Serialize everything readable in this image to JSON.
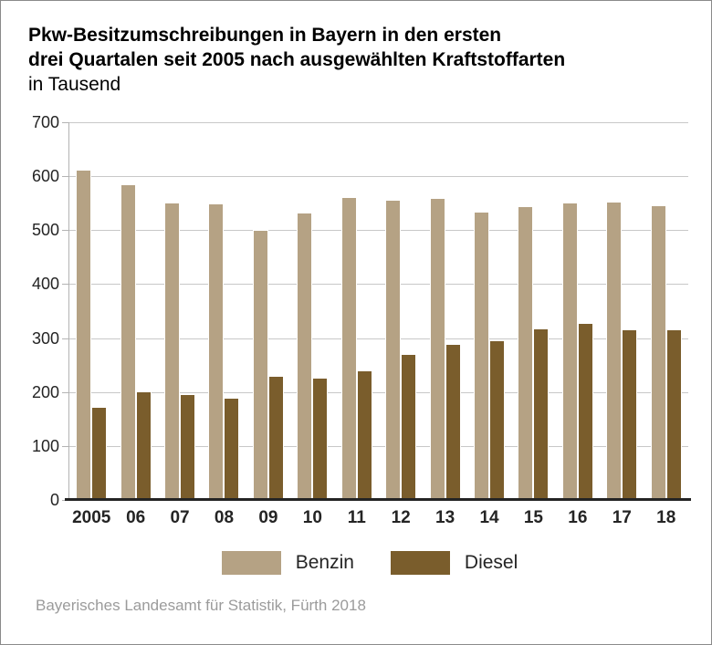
{
  "title": {
    "line1": "Pkw-Besitzumschreibungen in Bayern in den ersten",
    "line2": "drei Quartalen seit 2005 nach ausgewählten Kraftstoffarten",
    "subtitle": "in Tausend"
  },
  "chart_data": {
    "type": "bar",
    "title": "Pkw-Besitzumschreibungen in Bayern in den ersten drei Quartalen seit 2005 nach ausgewählten Kraftstoffarten",
    "subtitle": "in Tausend",
    "categories": [
      "2005",
      "06",
      "07",
      "08",
      "09",
      "10",
      "11",
      "12",
      "13",
      "14",
      "15",
      "16",
      "17",
      "18"
    ],
    "series": [
      {
        "name": "Benzin",
        "color": "#b5a284",
        "values": [
          613,
          585,
          551,
          549,
          500,
          533,
          562,
          557,
          559,
          535,
          545,
          552,
          553,
          546
        ]
      },
      {
        "name": "Diesel",
        "color": "#7a5d2c",
        "values": [
          172,
          202,
          197,
          190,
          230,
          227,
          241,
          271,
          289,
          296,
          318,
          328,
          316,
          317
        ]
      }
    ],
    "xlabel": "",
    "ylabel": "",
    "ylim": [
      0,
      700
    ],
    "yticks": [
      0,
      100,
      200,
      300,
      400,
      500,
      600,
      700
    ],
    "grid": true,
    "legend_position": "bottom"
  },
  "legend": {
    "items": [
      {
        "label": "Benzin",
        "color": "#b5a284"
      },
      {
        "label": "Diesel",
        "color": "#7a5d2c"
      }
    ]
  },
  "footer": {
    "source": "Bayerisches Landesamt für Statistik, Fürth 2018"
  },
  "colors": {
    "benzin": "#b5a284",
    "diesel": "#7a5d2c",
    "gridline": "#c8c8c8",
    "axis": "#b3b3b3",
    "baseline": "#242424",
    "footer_text": "#9b9b9b"
  }
}
